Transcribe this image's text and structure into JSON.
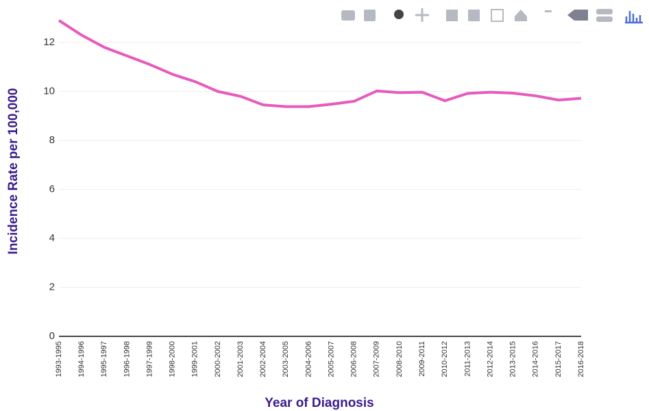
{
  "chart_data": {
    "type": "line",
    "x_label": "Year of Diagnosis",
    "y_label": "Incidence Rate per 100,000",
    "categories": [
      "1993-1995",
      "1994-1996",
      "1995-1997",
      "1996-1998",
      "1997-1999",
      "1998-2000",
      "1999-2001",
      "2000-2002",
      "2001-2003",
      "2002-2004",
      "2003-2005",
      "2004-2006",
      "2005-2007",
      "2006-2008",
      "2007-2009",
      "2008-2010",
      "2009-2011",
      "2010-2012",
      "2011-2013",
      "2012-2014",
      "2013-2015",
      "2014-2016",
      "2015-2017",
      "2016-2018"
    ],
    "values": [
      12.9,
      12.3,
      11.8,
      11.45,
      11.1,
      10.7,
      10.4,
      10.0,
      9.8,
      9.45,
      9.38,
      9.38,
      9.48,
      9.6,
      10.02,
      9.95,
      9.97,
      9.62,
      9.92,
      9.97,
      9.93,
      9.82,
      9.65,
      9.72
    ],
    "color": "#e65bbd",
    "ylim": [
      0,
      13
    ],
    "yticks": [
      0,
      2,
      4,
      6,
      8,
      10,
      12
    ],
    "grid": true
  }
}
